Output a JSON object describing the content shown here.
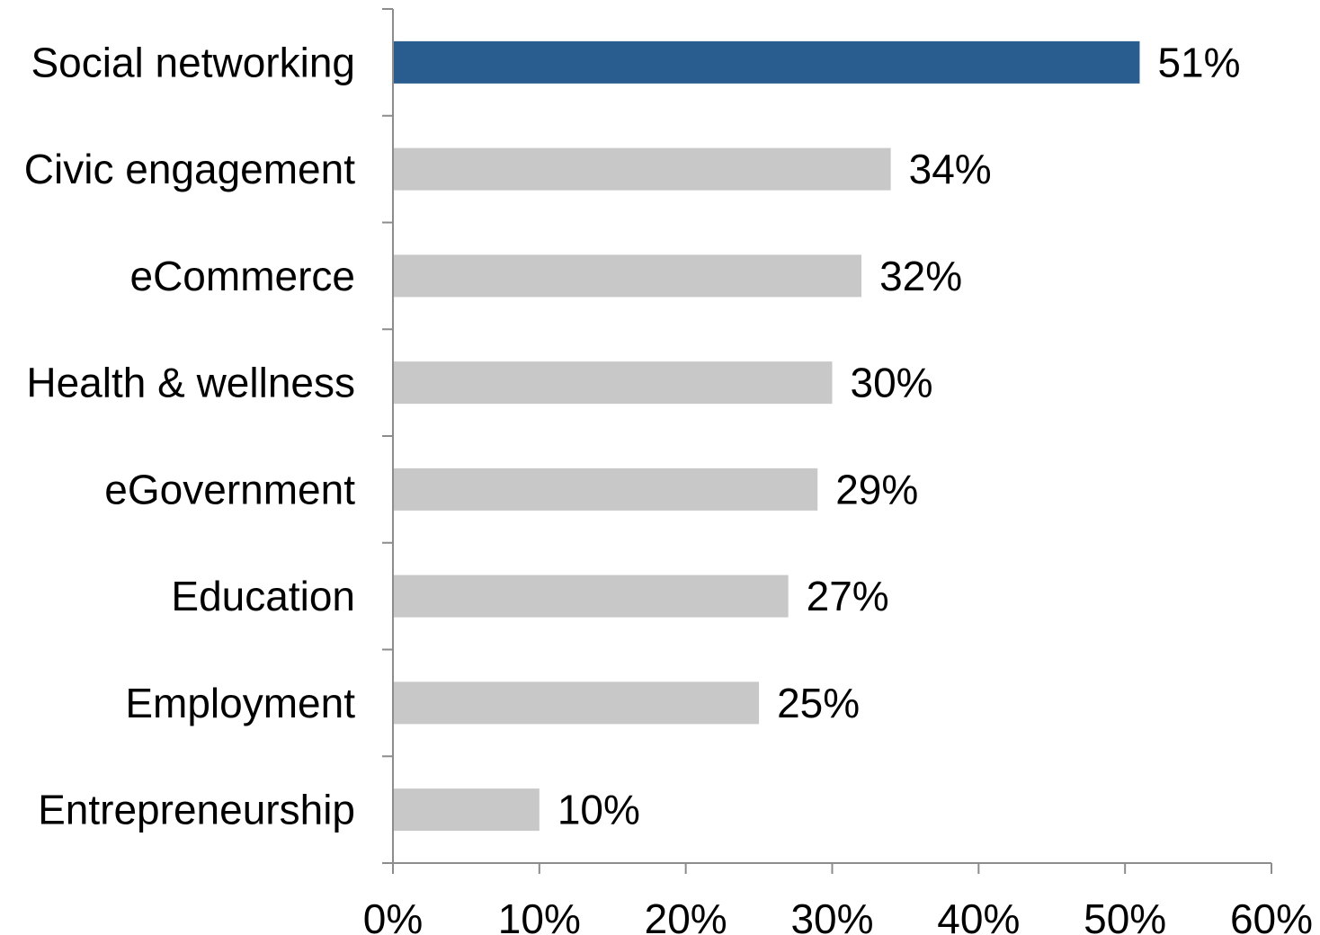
{
  "chart_data": {
    "type": "bar",
    "orientation": "horizontal",
    "title": "",
    "xlabel": "",
    "ylabel": "",
    "categories": [
      "Social networking",
      "Civic engagement",
      "eCommerce",
      "Health & wellness",
      "eGovernment",
      "Education",
      "Employment",
      "Entrepreneurship"
    ],
    "values": [
      51,
      34,
      32,
      30,
      29,
      27,
      25,
      10
    ],
    "data_labels": [
      "51%",
      "34%",
      "32%",
      "30%",
      "29%",
      "27%",
      "25%",
      "10%"
    ],
    "xlim": [
      0,
      60
    ],
    "x_ticks": [
      0,
      10,
      20,
      30,
      40,
      50,
      60
    ],
    "x_tick_labels": [
      "0%",
      "10%",
      "20%",
      "30%",
      "40%",
      "50%",
      "60%"
    ],
    "grid": false,
    "legend": "none",
    "colors": {
      "highlight": "#2a5d8f",
      "default": "#c8c8c8",
      "axis": "#8c8c8c",
      "text": "#000000"
    },
    "highlight_index": 0
  }
}
